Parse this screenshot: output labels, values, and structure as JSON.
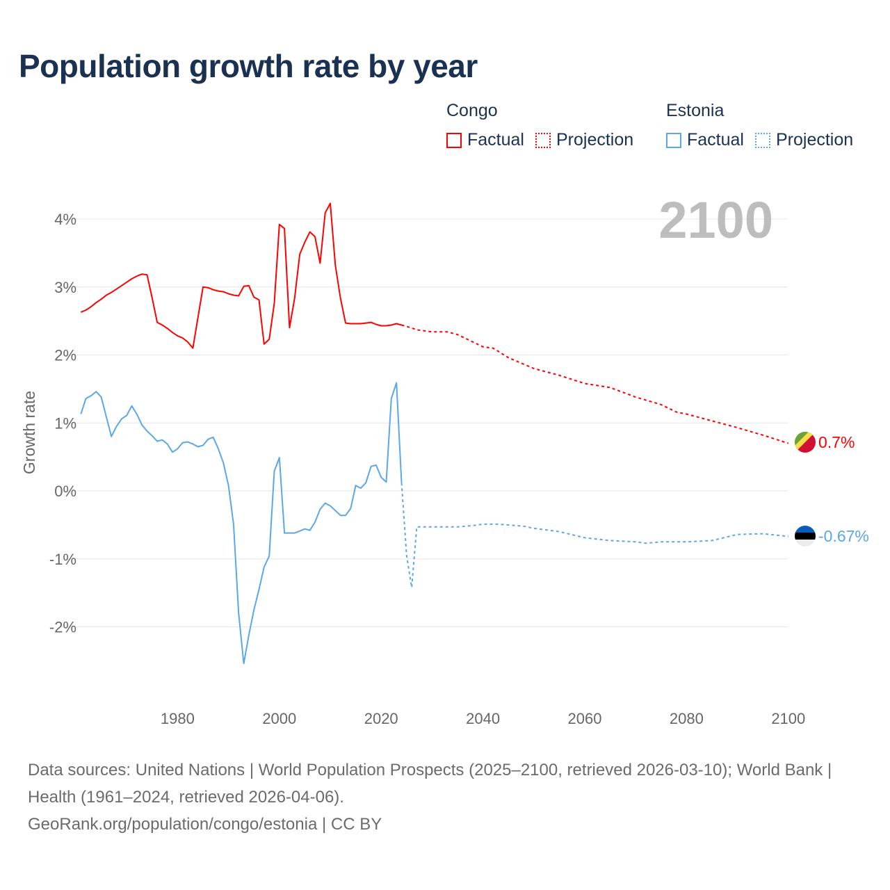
{
  "title": "Population growth rate by year",
  "legend": {
    "groups": [
      {
        "name": "Congo",
        "color": "#ff0000",
        "factual_label": "Factual",
        "projection_label": "Projection"
      },
      {
        "name": "Estonia",
        "color": "#5aa7ea",
        "factual_label": "Factual",
        "projection_label": "Projection"
      }
    ]
  },
  "year_overlay": "2100",
  "footer": {
    "sources": "Data sources: United Nations | World Population Prospects (2025–2100, retrieved 2026-03-10); World Bank | Health (1961–2024, retrieved 2026-04-06).",
    "credit": "GeoRank.org/population/congo/estonia | CC BY"
  },
  "chart_data": {
    "type": "line",
    "title": "Population growth rate by year",
    "xlabel": "",
    "ylabel": "Growth rate",
    "xlim": [
      1960,
      2100
    ],
    "ylim": [
      -3,
      4.5
    ],
    "x_ticks": [
      1980,
      2000,
      2020,
      2040,
      2060,
      2080,
      2100
    ],
    "x_tick_labels": [
      "1980",
      "2000",
      "2020",
      "2040",
      "2060",
      "2080",
      "2100"
    ],
    "y_ticks": [
      4,
      3,
      2,
      1,
      0,
      -1,
      -2
    ],
    "y_tick_labels": [
      "4%",
      "3%",
      "2%",
      "1%",
      "0%",
      "-1%",
      "-2%"
    ],
    "grid": true,
    "legend_position": "top-right",
    "series": [
      {
        "name": "Congo",
        "kind": "Factual",
        "color": "#ff0000",
        "x_start": 1961,
        "values": [
          2.63,
          2.66,
          2.71,
          2.77,
          2.82,
          2.88,
          2.92,
          2.97,
          3.02,
          3.07,
          3.12,
          3.16,
          3.19,
          3.18,
          2.84,
          2.48,
          2.44,
          2.39,
          2.33,
          2.28,
          2.25,
          2.19,
          2.1,
          2.55,
          3.0,
          2.99,
          2.96,
          2.94,
          2.93,
          2.9,
          2.88,
          2.87,
          3.01,
          3.02,
          2.85,
          2.81,
          2.16,
          2.23,
          2.76,
          3.92,
          3.86,
          2.4,
          2.84,
          3.48,
          3.66,
          3.81,
          3.74,
          3.35,
          4.09,
          4.23,
          3.32,
          2.84,
          2.47,
          2.46,
          2.46,
          2.46,
          2.47,
          2.48,
          2.45,
          2.43,
          2.43,
          2.44,
          2.46,
          2.44
        ]
      },
      {
        "name": "Congo",
        "kind": "Projection",
        "color": "#ff0000",
        "x": [
          2024,
          2025,
          2027,
          2030,
          2033,
          2035,
          2040,
          2042,
          2045,
          2050,
          2055,
          2060,
          2065,
          2070,
          2075,
          2078,
          2080,
          2085,
          2090,
          2095,
          2100
        ],
        "values": [
          2.44,
          2.42,
          2.37,
          2.34,
          2.34,
          2.3,
          2.12,
          2.1,
          1.96,
          1.8,
          1.7,
          1.58,
          1.52,
          1.38,
          1.27,
          1.16,
          1.13,
          1.03,
          0.93,
          0.82,
          0.7
        ]
      },
      {
        "name": "Estonia",
        "kind": "Factual",
        "color": "#5aa7ea",
        "x_start": 1961,
        "values": [
          1.13,
          1.36,
          1.4,
          1.46,
          1.38,
          1.09,
          0.8,
          0.95,
          1.06,
          1.11,
          1.25,
          1.13,
          0.97,
          0.88,
          0.81,
          0.73,
          0.75,
          0.69,
          0.57,
          0.62,
          0.71,
          0.72,
          0.69,
          0.65,
          0.67,
          0.76,
          0.79,
          0.62,
          0.41,
          0.08,
          -0.49,
          -1.8,
          -2.54,
          -2.12,
          -1.75,
          -1.45,
          -1.12,
          -0.96,
          0.29,
          0.49,
          -0.62,
          -0.62,
          -0.62,
          -0.59,
          -0.56,
          -0.58,
          -0.46,
          -0.27,
          -0.18,
          -0.22,
          -0.29,
          -0.36,
          -0.36,
          -0.26,
          0.08,
          0.04,
          0.12,
          0.36,
          0.38,
          0.2,
          0.13,
          1.36,
          1.59,
          0.12
        ]
      },
      {
        "name": "Estonia",
        "kind": "Projection",
        "color": "#5aa7ea",
        "x": [
          2024,
          2025,
          2026,
          2027,
          2030,
          2035,
          2038,
          2040,
          2043,
          2048,
          2050,
          2055,
          2060,
          2065,
          2070,
          2072,
          2075,
          2080,
          2085,
          2090,
          2095,
          2100
        ],
        "values": [
          0.12,
          -0.95,
          -1.42,
          -0.53,
          -0.53,
          -0.53,
          -0.51,
          -0.49,
          -0.49,
          -0.52,
          -0.55,
          -0.6,
          -0.69,
          -0.73,
          -0.75,
          -0.77,
          -0.75,
          -0.75,
          -0.73,
          -0.64,
          -0.63,
          -0.67
        ]
      }
    ],
    "end_labels": [
      {
        "name": "Congo",
        "value": 0.7,
        "label": "0.7%",
        "color": "#ff0000"
      },
      {
        "name": "Estonia",
        "value": -0.67,
        "label": "-0.67%",
        "color": "#5aa7ea"
      }
    ]
  }
}
